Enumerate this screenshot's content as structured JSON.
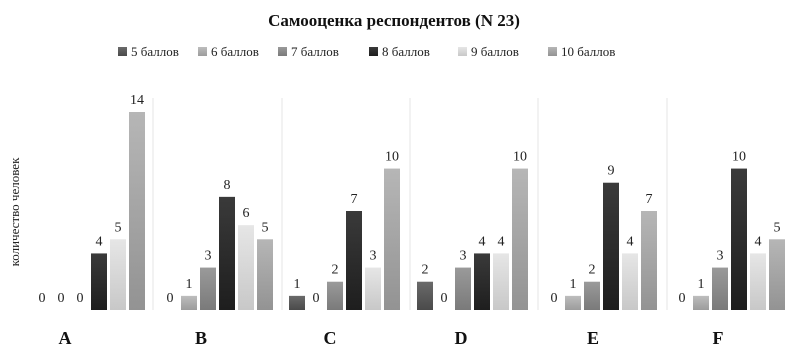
{
  "chart_data": {
    "type": "bar",
    "title": "Самооценка респондентов (N 23)",
    "ylabel": "количество человек",
    "xlabel": "",
    "categories": [
      "A",
      "B",
      "C",
      "D",
      "E",
      "F"
    ],
    "ylim": [
      0,
      14
    ],
    "grid": false,
    "legend_position": "top",
    "series": [
      {
        "name": "5 баллов",
        "color": "#585858",
        "values": [
          0,
          0,
          1,
          2,
          0,
          0
        ]
      },
      {
        "name": "6  баллов",
        "color": "#aaaaaa",
        "values": [
          0,
          1,
          0,
          0,
          1,
          1
        ]
      },
      {
        "name": "7  баллов",
        "color": "#8a8a8a",
        "values": [
          0,
          3,
          2,
          3,
          2,
          3
        ]
      },
      {
        "name": "8  баллов",
        "color": "#2e2e2e",
        "values": [
          4,
          8,
          7,
          4,
          9,
          10
        ]
      },
      {
        "name": "9  баллов",
        "color": "#d6d6d6",
        "values": [
          5,
          6,
          3,
          4,
          4,
          4
        ]
      },
      {
        "name": "10  баллов",
        "color": "#a4a4a4",
        "values": [
          14,
          5,
          10,
          10,
          7,
          5
        ]
      }
    ]
  }
}
